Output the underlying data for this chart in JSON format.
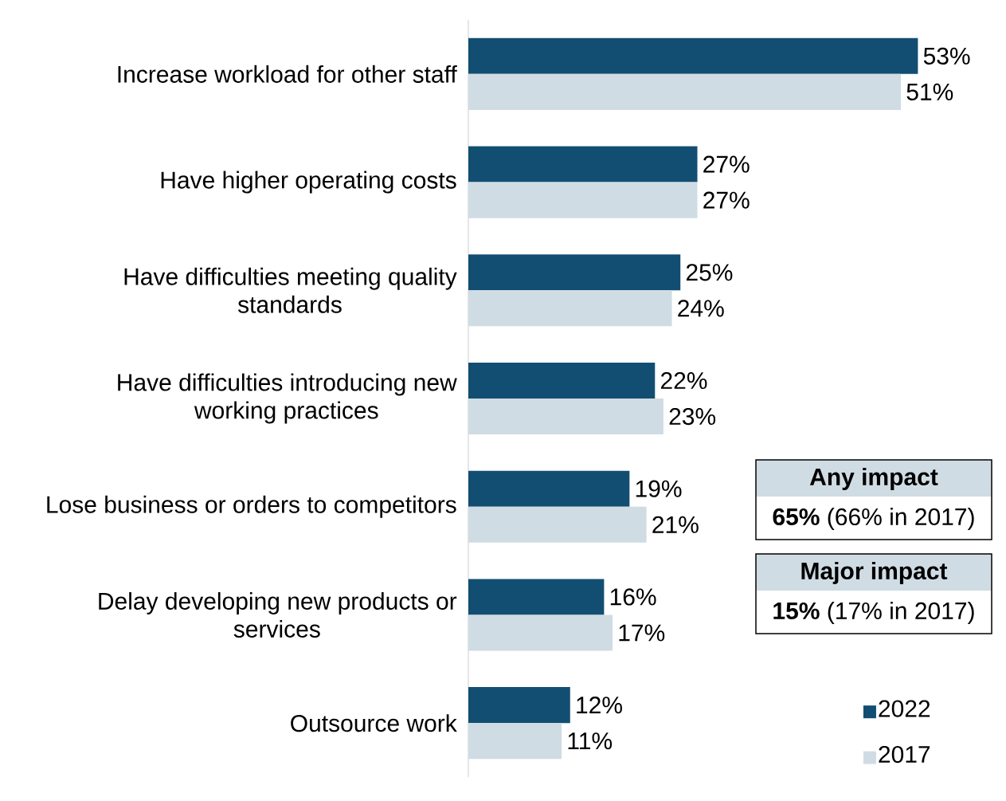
{
  "chart_data": {
    "type": "bar",
    "orientation": "horizontal",
    "categories": [
      "Increase workload for other staff",
      "Have higher operating costs",
      "Have difficulties meeting quality standards",
      "Have difficulties introducing new working practices",
      "Lose business or orders to competitors",
      "Delay developing new products or services",
      "Outsource work"
    ],
    "series": [
      {
        "name": "2022",
        "color": "#124e72",
        "values": [
          53,
          27,
          25,
          22,
          19,
          16,
          12
        ],
        "value_labels": [
          "53%",
          "27%",
          "25%",
          "22%",
          "19%",
          "16%",
          "12%"
        ]
      },
      {
        "name": "2017",
        "color": "#d0dce4",
        "values": [
          51,
          27,
          24,
          23,
          21,
          17,
          11
        ],
        "value_labels": [
          "51%",
          "27%",
          "24%",
          "23%",
          "21%",
          "17%",
          "11%"
        ]
      }
    ],
    "tick_labels": "y",
    "legend": "bottom right",
    "annotations": [
      "Any impact",
      "**65%** (66% in 2017)",
      "Major impact",
      "**15%** (17% in 2017)"
    ]
  }
}
